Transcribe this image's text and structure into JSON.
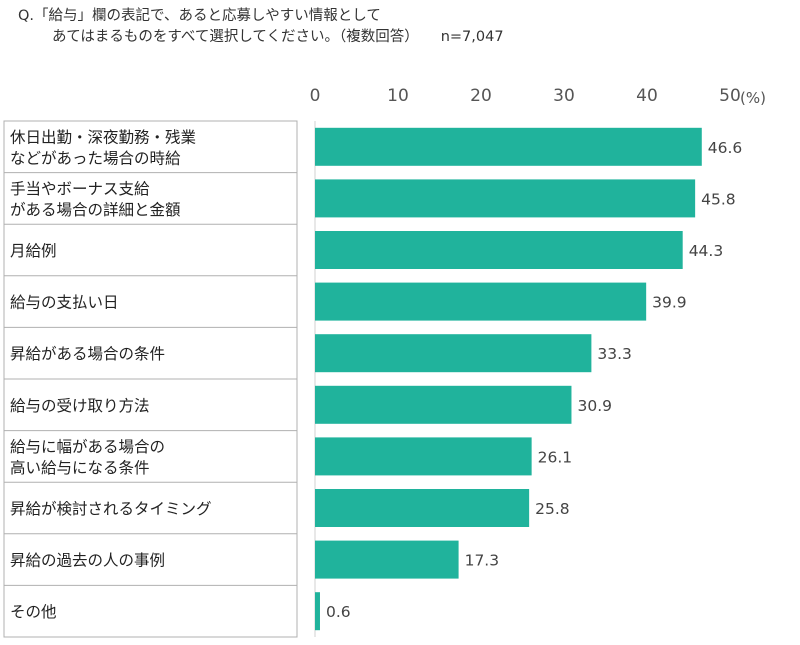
{
  "question": {
    "line1": "Q.「給与」欄の表記で、あると応募しやすい情報として",
    "line2": "あてはまるものをすべて選択してください。（複数回答）",
    "sample": "n=7,047"
  },
  "chart_data": {
    "type": "bar",
    "orientation": "horizontal",
    "unit_label": "(%)",
    "xlim": [
      0,
      50
    ],
    "ticks": [
      0,
      10,
      20,
      30,
      40,
      50
    ],
    "bar_color": "#20b39c",
    "categories": [
      [
        "休日出勤・深夜勤務・残業",
        "などがあった場合の時給"
      ],
      [
        "手当やボーナス支給",
        "がある場合の詳細と金額"
      ],
      [
        "月給例"
      ],
      [
        "給与の支払い日"
      ],
      [
        "昇給がある場合の条件"
      ],
      [
        "給与の受け取り方法"
      ],
      [
        "給与に幅がある場合の",
        "高い給与になる条件"
      ],
      [
        "昇給が検討されるタイミング"
      ],
      [
        "昇給の過去の人の事例"
      ],
      [
        "その他"
      ]
    ],
    "values": [
      46.6,
      45.8,
      44.3,
      39.9,
      33.3,
      30.9,
      26.1,
      25.8,
      17.3,
      0.6
    ],
    "value_labels": [
      "46.6",
      "45.8",
      "44.3",
      "39.9",
      "33.3",
      "30.9",
      "26.1",
      "25.8",
      "17.3",
      "0.6"
    ]
  }
}
